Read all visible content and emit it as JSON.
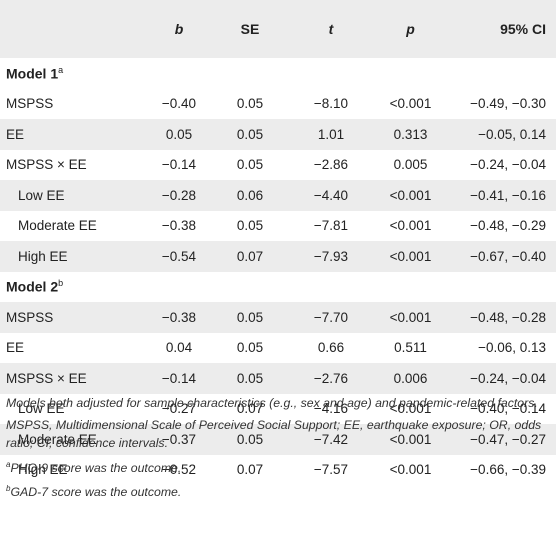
{
  "headers": [
    "",
    "b",
    "SE",
    "t",
    "p",
    "95% CI"
  ],
  "models": [
    {
      "label": "Model 1",
      "sup": "a",
      "rows": [
        {
          "label": "MSPSS",
          "sub": false,
          "b": "−0.40",
          "se": "0.05",
          "t": "−8.10",
          "p": "<0.001",
          "ci": "−0.49, −0.30"
        },
        {
          "label": "EE",
          "sub": false,
          "b": "0.05",
          "se": "0.05",
          "t": "1.01",
          "p": "0.313",
          "ci": "−0.05, 0.14"
        },
        {
          "label": "MSPSS × EE",
          "sub": false,
          "b": "−0.14",
          "se": "0.05",
          "t": "−2.86",
          "p": "0.005",
          "ci": "−0.24, −0.04"
        },
        {
          "label": "Low EE",
          "sub": true,
          "b": "−0.28",
          "se": "0.06",
          "t": "−4.40",
          "p": "<0.001",
          "ci": "−0.41, −0.16"
        },
        {
          "label": "Moderate EE",
          "sub": true,
          "b": "−0.38",
          "se": "0.05",
          "t": "−7.81",
          "p": "<0.001",
          "ci": "−0.48, −0.29"
        },
        {
          "label": "High EE",
          "sub": true,
          "b": "−0.54",
          "se": "0.07",
          "t": "−7.93",
          "p": "<0.001",
          "ci": "−0.67, −0.40"
        }
      ]
    },
    {
      "label": "Model 2",
      "sup": "b",
      "rows": [
        {
          "label": "MSPSS",
          "sub": false,
          "b": "−0.38",
          "se": "0.05",
          "t": "−7.70",
          "p": "<0.001",
          "ci": "−0.48, −0.28"
        },
        {
          "label": "EE",
          "sub": false,
          "b": "0.04",
          "se": "0.05",
          "t": "0.66",
          "p": "0.511",
          "ci": "−0.06, 0.13"
        },
        {
          "label": "MSPSS × EE",
          "sub": false,
          "b": "−0.14",
          "se": "0.05",
          "t": "−2.76",
          "p": "0.006",
          "ci": "−0.24, −0.04"
        },
        {
          "label": "Low EE",
          "sub": true,
          "b": "−0.27",
          "se": "0.07",
          "t": "−4.16",
          "p": "<0.001",
          "ci": "−0.40, −0.14"
        },
        {
          "label": "Moderate EE",
          "sub": true,
          "b": "−0.37",
          "se": "0.05",
          "t": "−7.42",
          "p": "<0.001",
          "ci": "−0.47, −0.27"
        },
        {
          "label": "High EE",
          "sub": true,
          "b": "−0.52",
          "se": "0.07",
          "t": "−7.57",
          "p": "<0.001",
          "ci": "−0.66, −0.39"
        }
      ]
    }
  ],
  "notes": {
    "adjusted": "Models both adjusted for sample characteristics (e.g., sex and age) and pandemic-related factors.",
    "abbreviations": "MSPSS, Multidimensional Scale of Perceived Social Support; EE, earthquake exposure; OR, odds ratio; CI, confidence intervals.",
    "footnotes": [
      {
        "mark": "a",
        "text": "PHQ-9 score was the outcome."
      },
      {
        "mark": "b",
        "text": "GAD-7 score was the outcome."
      }
    ]
  },
  "colors": {
    "stripe": "#ececec",
    "text": "#222222"
  }
}
